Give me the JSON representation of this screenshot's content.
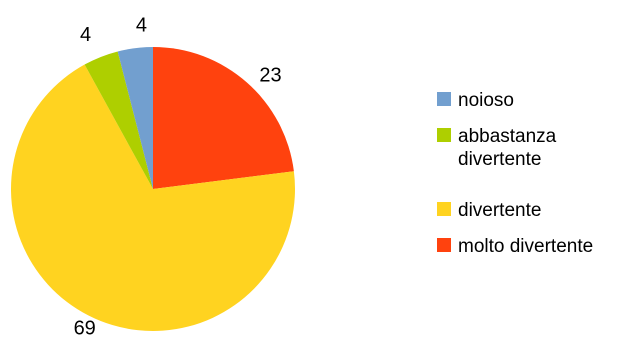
{
  "chart_data": {
    "type": "pie",
    "title": "",
    "start_angle_deg": 0,
    "direction": "clockwise",
    "legend_position": "right",
    "slices": [
      {
        "label": "molto divertente",
        "value": 23,
        "color": "#ff420e",
        "legend_lines": [
          "molto divertente"
        ]
      },
      {
        "label": "divertente",
        "value": 69,
        "color": "#ffd320",
        "legend_lines": [
          "divertente"
        ]
      },
      {
        "label": "abbastanza divertente",
        "value": 4,
        "color": "#aecf00",
        "legend_lines": [
          "abbastanza",
          "divertente"
        ]
      },
      {
        "label": "noioso",
        "value": 4,
        "color": "#729fcf",
        "legend_lines": [
          "noioso"
        ]
      }
    ],
    "legend_order": [
      "noioso",
      "abbastanza divertente",
      "divertente",
      "molto divertente"
    ]
  }
}
